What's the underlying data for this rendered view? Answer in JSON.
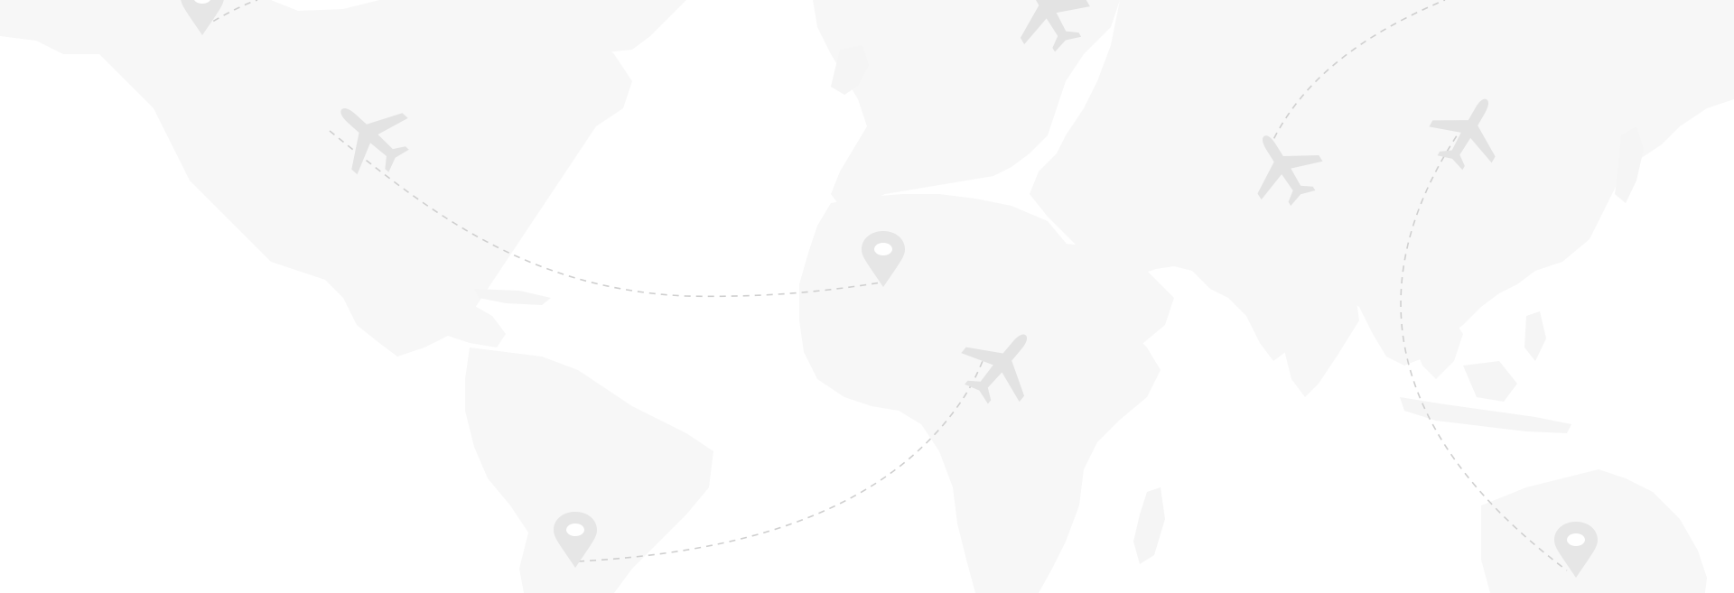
{
  "scene": {
    "description_tag": "world-map-flight-routes-background",
    "colors": {
      "background": "#ffffff",
      "land": "#f7f7f7",
      "route_dash": "#cfcfcf",
      "pin": "#e6e6e6",
      "plane": "#e3e3e3"
    },
    "icons": {
      "pin": "location-pin-icon",
      "plane": "airplane-icon"
    }
  }
}
